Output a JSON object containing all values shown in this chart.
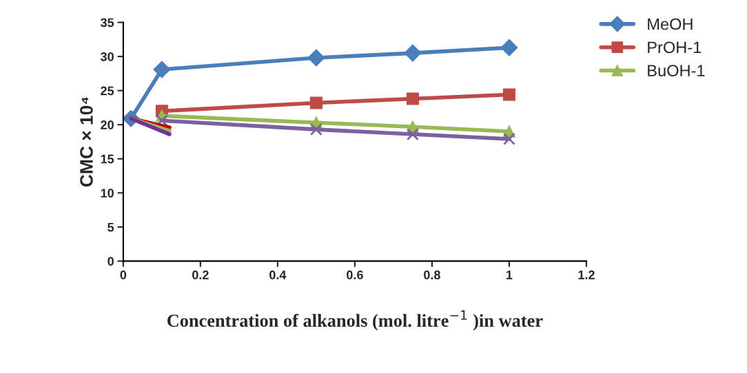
{
  "chart_data": {
    "type": "line",
    "xlabel": "Concentration of alkanols (mol. litre$^{−1}$ )in water",
    "ylabel": "CMC × 10⁴",
    "xlim": [
      0,
      1.2
    ],
    "xticks": [
      0,
      0.2,
      0.4,
      0.6,
      0.8,
      1,
      1.2
    ],
    "ylim": [
      0,
      35
    ],
    "yticks": [
      0,
      5,
      10,
      15,
      20,
      25,
      30,
      35
    ],
    "grid": false,
    "legend": "top right",
    "line_style": "solid",
    "series": [
      {
        "name": "MeOH",
        "color": "#4a7ebb",
        "marker": "diamond",
        "x": [
          0.02,
          0.1,
          0.5,
          0.75,
          1
        ],
        "values": [
          20.9,
          28.1,
          29.8,
          30.5,
          31.3
        ]
      },
      {
        "name": "PrOH-1",
        "color": "#be4b48",
        "marker": "square",
        "x": [
          0.1,
          0.5,
          0.75,
          1
        ],
        "values": [
          22.0,
          23.2,
          23.8,
          24.4
        ]
      },
      {
        "name": "BuOH-1",
        "color": "#98b954",
        "marker": "triangle",
        "x": [
          0.1,
          0.5,
          0.75,
          1
        ],
        "values": [
          21.3,
          20.3,
          19.7,
          19.0
        ]
      },
      {
        "color": "#7d60a0",
        "marker": "cross",
        "x": [
          0.1,
          0.5,
          0.75,
          1
        ],
        "values": [
          20.6,
          19.3,
          18.6,
          17.9
        ]
      },
      {
        "color": "#c00000",
        "marker": "none",
        "x": [
          0.02,
          0.12
        ],
        "values": [
          20.9,
          19.6
        ]
      },
      {
        "color": "#98b954",
        "marker": "none",
        "x": [
          0.02,
          0.12
        ],
        "values": [
          20.9,
          19.1
        ]
      },
      {
        "color": "#7030a0",
        "marker": "none",
        "x": [
          0.02,
          0.12
        ],
        "values": [
          20.9,
          18.6
        ]
      }
    ]
  }
}
